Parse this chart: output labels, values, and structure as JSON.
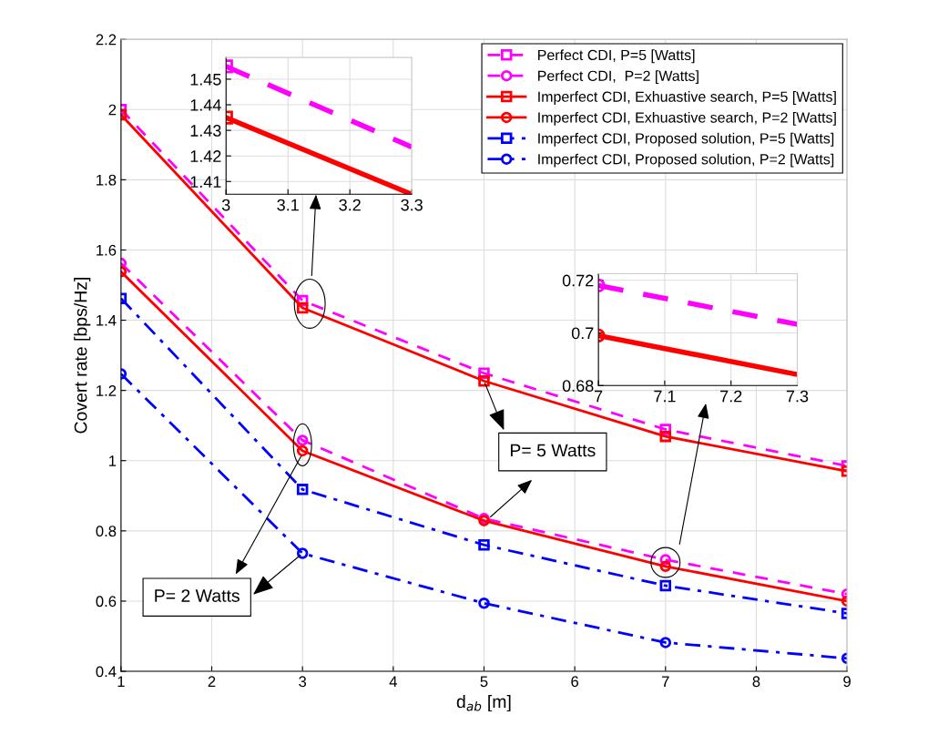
{
  "chart_data": [
    {
      "type": "line",
      "xlabel": "d$_{ab}$ [m]",
      "ylabel": "Covert rate [bps/Hz]",
      "x": [
        1,
        3,
        5,
        7,
        9
      ],
      "xlim": [
        1,
        9
      ],
      "xticks": [
        1,
        2,
        3,
        4,
        5,
        6,
        7,
        8,
        9
      ],
      "ylim": [
        0.4,
        2.2
      ],
      "yticks": [
        0.4,
        0.6,
        0.8,
        {
          "value": 1.0,
          "label": "1"
        },
        1.2,
        1.4,
        1.6,
        1.8,
        {
          "value": 2.0,
          "label": "2"
        },
        2.2
      ],
      "grid": true,
      "legend": "top right",
      "series": [
        {
          "name": "Perfect CDI, P=5 [Watts]",
          "color": "#ff00ff",
          "marker": "square",
          "line_style": "dashed",
          "values": [
            2.0,
            1.456,
            1.249,
            1.089,
            0.985
          ]
        },
        {
          "name": "Perfect CDI,  P=2 [Watts]",
          "color": "#ff00ff",
          "marker": "circle",
          "line_style": "dashed",
          "values": [
            1.562,
            1.058,
            0.835,
            0.718,
            0.62
          ]
        },
        {
          "name": "Imperfect CDI, Exhuastive search, P=5 [Watts]",
          "color": "#ff0000",
          "marker": "square",
          "line_style": "solid",
          "values": [
            1.985,
            1.435,
            1.227,
            1.069,
            0.97
          ]
        },
        {
          "name": "Imperfect CDI, Exhuastive search, P=2 [Watts]",
          "color": "#ff0000",
          "marker": "circle",
          "line_style": "solid",
          "values": [
            1.538,
            1.028,
            0.829,
            0.699,
            0.6
          ]
        },
        {
          "name": "Imperfect CDI, Proposed solution, P=5 [Watts]",
          "color": "#0000ff",
          "marker": "square",
          "line_style": "dashdot",
          "values": [
            1.462,
            0.918,
            0.76,
            0.644,
            0.565
          ]
        },
        {
          "name": "Imperfect CDI, Proposed solution, P=2 [Watts]",
          "color": "#0000ff",
          "marker": "circle",
          "line_style": "dashdot",
          "values": [
            1.247,
            0.736,
            0.594,
            0.482,
            0.437
          ]
        }
      ],
      "annotations": [
        {
          "text": "P= 5 Watts",
          "x": 5,
          "y": 1.227
        },
        {
          "text": "P= 2 Watts",
          "x": 3,
          "y": 0.736
        }
      ]
    },
    {
      "type": "line",
      "x": [
        3,
        3.3
      ],
      "xlim": [
        3,
        3.3
      ],
      "xticks": [
        3,
        3.1,
        3.2,
        3.3
      ],
      "ylim": [
        1.405,
        1.4585
      ],
      "yticks": [
        1.41,
        1.42,
        1.43,
        1.44,
        1.45
      ],
      "grid": true,
      "series": [
        {
          "color": "#ff00ff",
          "marker": "square",
          "line_style": "dashed",
          "values": [
            1.455,
            1.4235
          ]
        },
        {
          "color": "#ff0000",
          "marker": "square",
          "line_style": "solid",
          "values": [
            1.435,
            1.405
          ]
        }
      ]
    },
    {
      "type": "line",
      "x": [
        7,
        7.3
      ],
      "xlim": [
        7,
        7.3
      ],
      "xticks": [
        7,
        7.1,
        7.2,
        7.3
      ],
      "ylim": [
        0.68,
        0.7225
      ],
      "yticks": [
        0.68,
        {
          "value": 0.7,
          "label": "0.7"
        },
        0.72
      ],
      "grid": true,
      "series": [
        {
          "color": "#ff00ff",
          "marker": "circle",
          "line_style": "dashed",
          "values": [
            0.718,
            0.7033
          ]
        },
        {
          "color": "#ff0000",
          "marker": "circle",
          "line_style": "solid",
          "values": [
            0.699,
            0.6842
          ]
        }
      ]
    }
  ]
}
